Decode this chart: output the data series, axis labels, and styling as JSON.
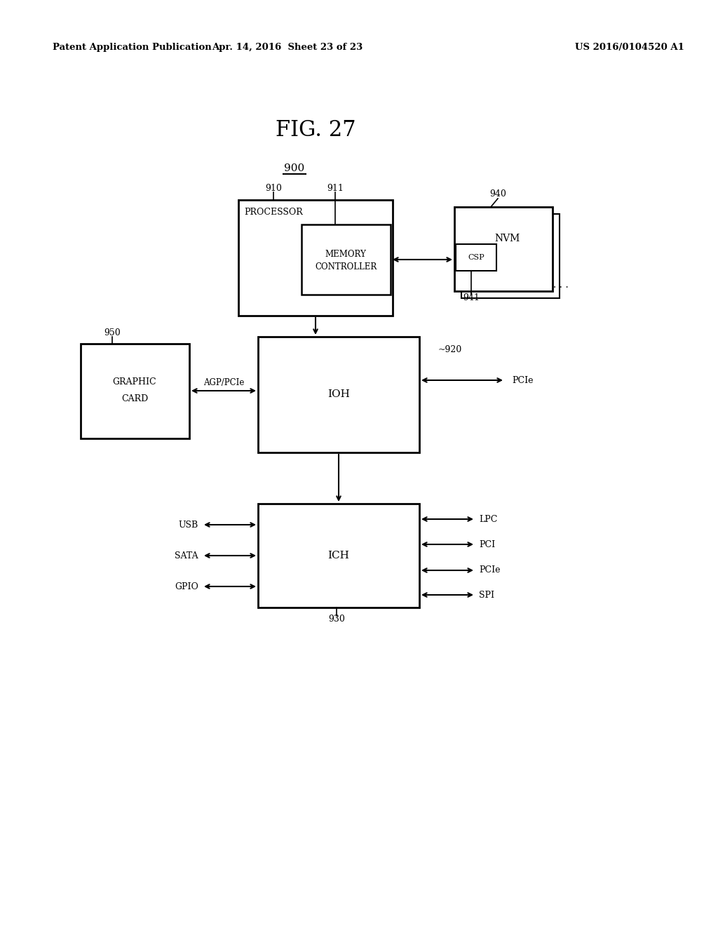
{
  "title": "FIG. 27",
  "header_left": "Patent Application Publication",
  "header_mid": "Apr. 14, 2016  Sheet 23 of 23",
  "header_right": "US 2016/0104520 A1",
  "bg_color": "#ffffff",
  "fig_w": 10.24,
  "fig_h": 13.2,
  "dpi": 100
}
